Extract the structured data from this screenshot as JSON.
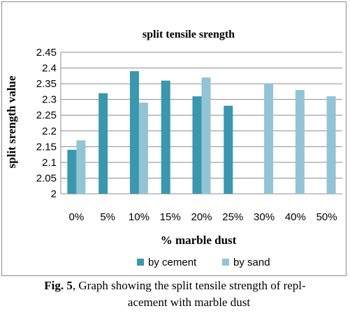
{
  "chart_data": {
    "type": "bar",
    "title": "split tensile srength",
    "xlabel": "% marble dust",
    "ylabel": "split srength value",
    "categories": [
      "0%",
      "5%",
      "10%",
      "15%",
      "20%",
      "25%",
      "30%",
      "40%",
      "50%"
    ],
    "series": [
      {
        "name": "by cement",
        "color": "#3a97ad",
        "values": [
          2.14,
          2.32,
          2.39,
          2.36,
          2.31,
          2.28,
          null,
          null,
          null
        ]
      },
      {
        "name": "by sand",
        "color": "#92c4d5",
        "values": [
          2.17,
          null,
          2.29,
          null,
          2.37,
          null,
          2.35,
          2.33,
          2.31
        ]
      }
    ],
    "ylim": [
      2,
      2.45
    ],
    "yticks": [
      "2",
      "2.05",
      "2.1",
      "2.15",
      "2.2",
      "2.25",
      "2.3",
      "2.35",
      "2.4",
      "2.45"
    ],
    "grid": true,
    "legend_position": "bottom"
  },
  "caption": {
    "fig_label": "Fig. 5",
    "line1": ", Graph showing the  split tensile strength of repl-",
    "line2": "acement with marble dust"
  }
}
